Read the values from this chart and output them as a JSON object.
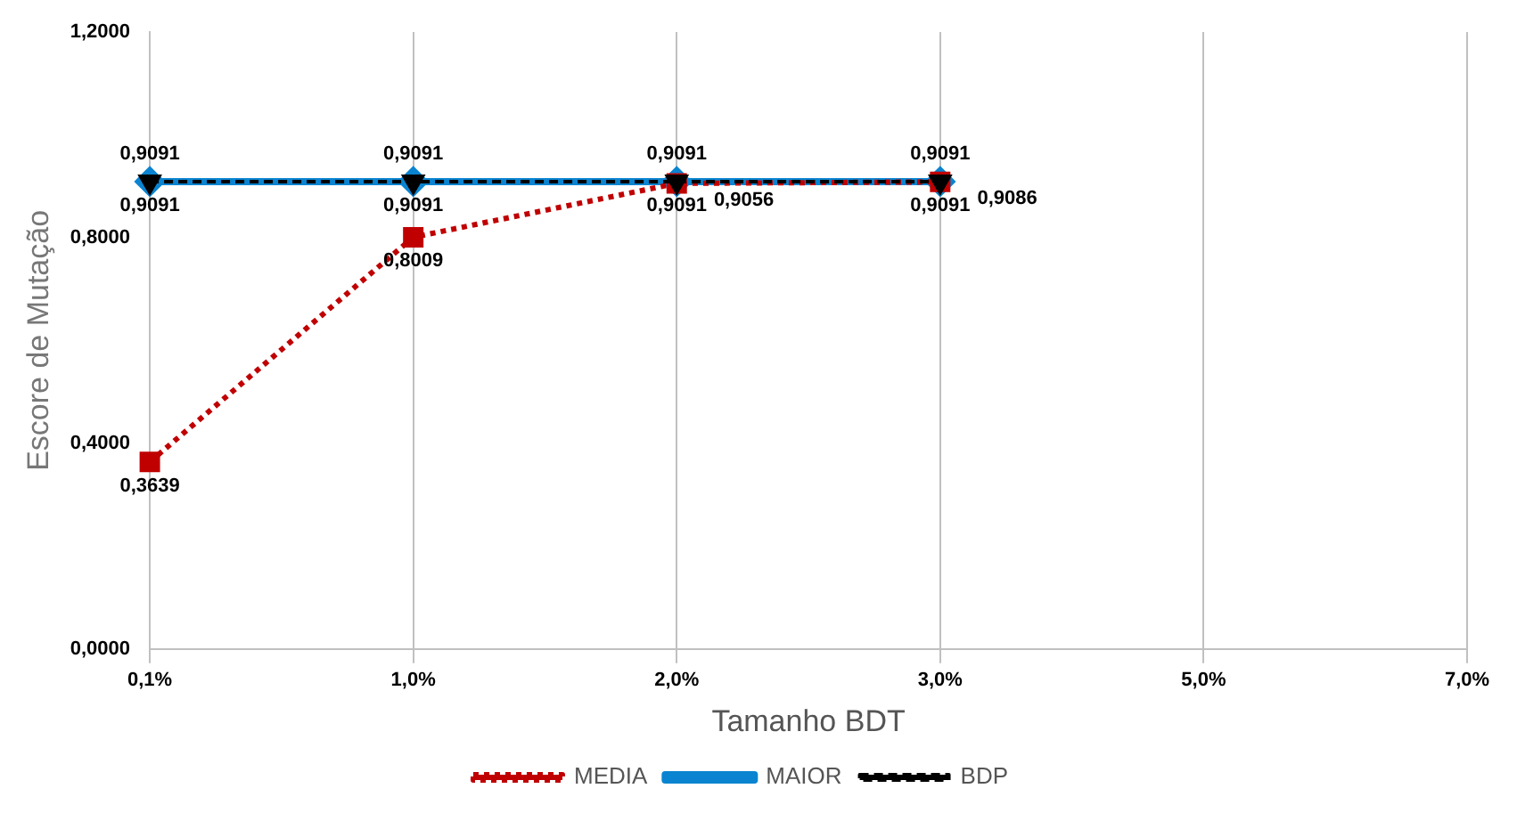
{
  "chart_data": {
    "type": "line",
    "xlabel": "Tamanho BDT",
    "ylabel": "Escore de Mutação",
    "categories": [
      "0,1%",
      "1,0%",
      "2,0%",
      "3,0%",
      "5,0%",
      "7,0%"
    ],
    "series": [
      {
        "name": "MEDIA",
        "color": "#c00000",
        "values": [
          0.3639,
          0.8009,
          0.9056,
          0.9086,
          null,
          null
        ],
        "value_labels": [
          "0,3639",
          "0,8009",
          "0,9056",
          "0,9086",
          null,
          null
        ],
        "marker": "square",
        "line_style": "dotted"
      },
      {
        "name": "MAIOR",
        "color": "#0a84d0",
        "values": [
          0.9091,
          0.9091,
          0.9091,
          0.9091,
          null,
          null
        ],
        "value_labels": [
          "0,9091",
          "0,9091",
          "0,9091",
          "0,9091",
          null,
          null
        ],
        "marker": "diamond",
        "line_style": "solid"
      },
      {
        "name": "BDP",
        "color": "#000000",
        "values": [
          0.9091,
          0.9091,
          0.9091,
          0.9091,
          null,
          null
        ],
        "value_labels": [
          "0,9091",
          "0,9091",
          "0,9091",
          "0,9091",
          null,
          null
        ],
        "marker": "triangle",
        "line_style": "dashed"
      }
    ],
    "ylim": [
      0,
      1.2
    ],
    "yticks": [
      {
        "value": 0,
        "label": "0,0000"
      },
      {
        "value": 0.4,
        "label": "0,4000"
      },
      {
        "value": 0.8,
        "label": "0,8000"
      },
      {
        "value": 1.2,
        "label": "1,2000"
      }
    ],
    "grid": "x",
    "legend": "bottom"
  }
}
